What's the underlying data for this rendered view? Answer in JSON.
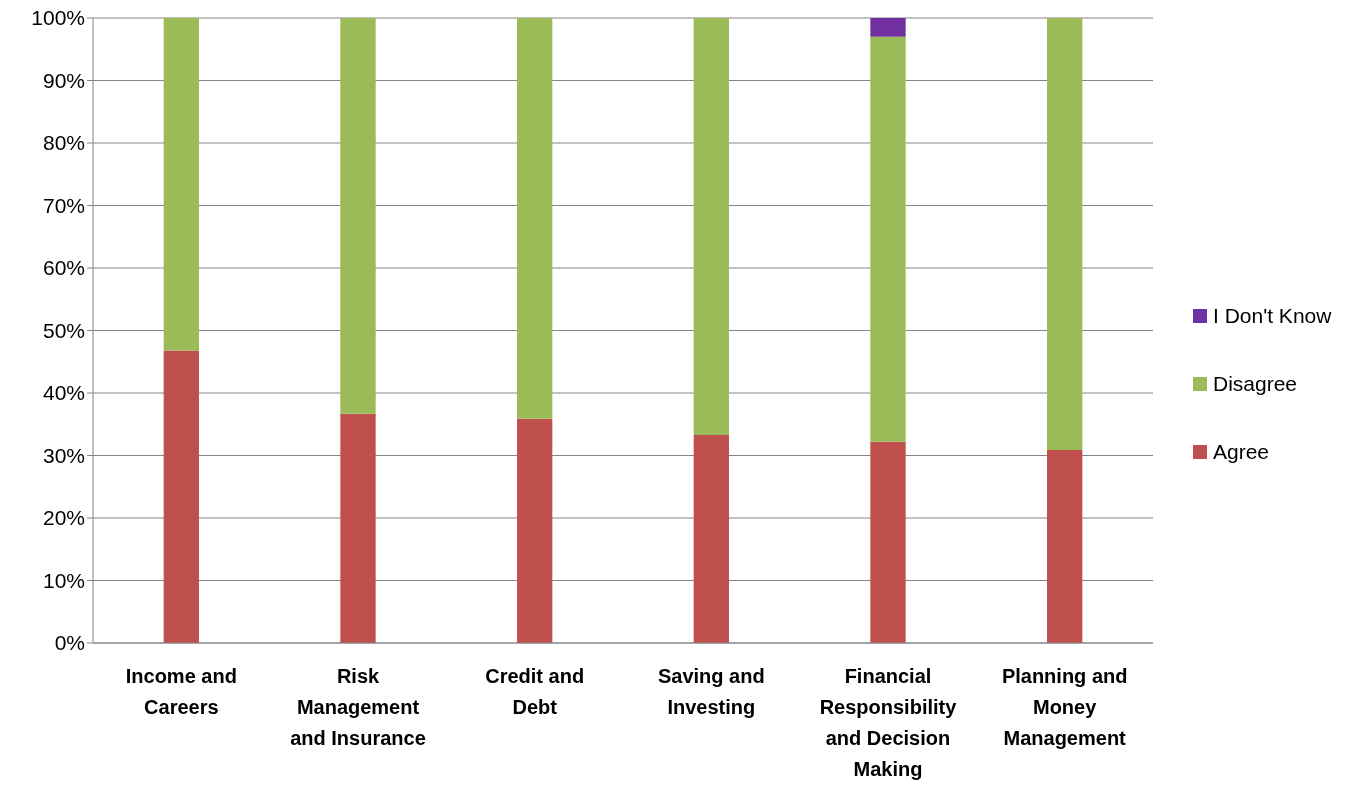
{
  "chart_data": {
    "type": "bar",
    "stacked": true,
    "categories": [
      "Income and Careers",
      "Risk Management and Insurance",
      "Credit and Debt",
      "Saving and Investing",
      "Financial Responsibility and Decision Making",
      "Planning and Money Management"
    ],
    "series": [
      {
        "name": "Agree",
        "color": "#c0504d",
        "values": [
          46.8,
          36.7,
          35.9,
          33.3,
          32.2,
          30.9
        ]
      },
      {
        "name": "Disagree",
        "color": "#9bbb59",
        "values": [
          53.2,
          63.3,
          64.1,
          66.7,
          64.8,
          69.1
        ]
      },
      {
        "name": "I Don't Know",
        "color": "#7030a0",
        "values": [
          0,
          0,
          0,
          0,
          3,
          0
        ]
      }
    ],
    "ylim": [
      0,
      100
    ],
    "yticks": [
      {
        "value": 0,
        "label": "0%"
      },
      {
        "value": 10,
        "label": "10%"
      },
      {
        "value": 20,
        "label": "20%"
      },
      {
        "value": 30,
        "label": "30%"
      },
      {
        "value": 40,
        "label": "40%"
      },
      {
        "value": 50,
        "label": "50%"
      },
      {
        "value": 60,
        "label": "60%"
      },
      {
        "value": 70,
        "label": "70%"
      },
      {
        "value": 80,
        "label": "80%"
      },
      {
        "value": 90,
        "label": "90%"
      },
      {
        "value": 100,
        "label": "100%"
      }
    ],
    "grid": "y",
    "legend": "right"
  }
}
